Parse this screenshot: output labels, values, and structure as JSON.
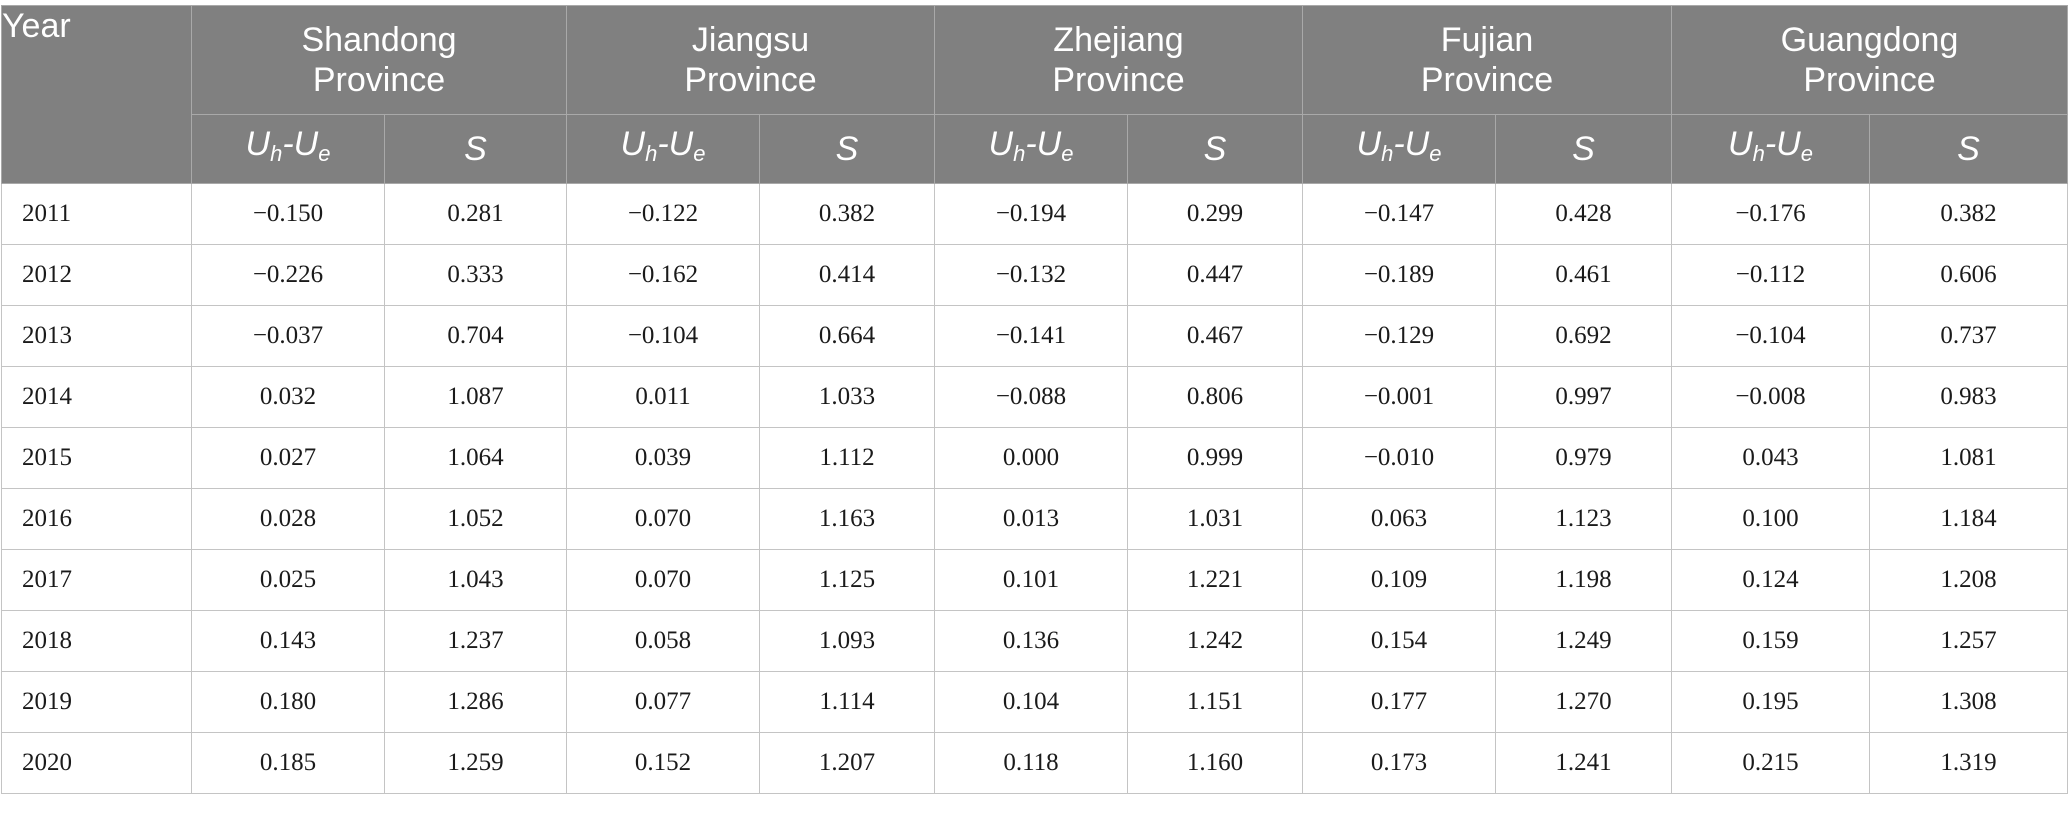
{
  "table": {
    "year_header": "Year",
    "provinces": [
      {
        "line1": "Shandong",
        "line2": "Province"
      },
      {
        "line1": "Jiangsu",
        "line2": "Province"
      },
      {
        "line1": "Zhejiang",
        "line2": "Province"
      },
      {
        "line1": "Fujian",
        "line2": "Province"
      },
      {
        "line1": "Guangdong",
        "line2": "Province"
      }
    ],
    "subheaders": {
      "diff_u1": "U",
      "diff_sub1": "h",
      "diff_mid": "-U",
      "diff_sub2": "e",
      "s": "S"
    },
    "rows": [
      {
        "year": "2011",
        "values": [
          "−0.150",
          "0.281",
          "−0.122",
          "0.382",
          "−0.194",
          "0.299",
          "−0.147",
          "0.428",
          "−0.176",
          "0.382"
        ]
      },
      {
        "year": "2012",
        "values": [
          "−0.226",
          "0.333",
          "−0.162",
          "0.414",
          "−0.132",
          "0.447",
          "−0.189",
          "0.461",
          "−0.112",
          "0.606"
        ]
      },
      {
        "year": "2013",
        "values": [
          "−0.037",
          "0.704",
          "−0.104",
          "0.664",
          "−0.141",
          "0.467",
          "−0.129",
          "0.692",
          "−0.104",
          "0.737"
        ]
      },
      {
        "year": "2014",
        "values": [
          "0.032",
          "1.087",
          "0.011",
          "1.033",
          "−0.088",
          "0.806",
          "−0.001",
          "0.997",
          "−0.008",
          "0.983"
        ]
      },
      {
        "year": "2015",
        "values": [
          "0.027",
          "1.064",
          "0.039",
          "1.112",
          "0.000",
          "0.999",
          "−0.010",
          "0.979",
          "0.043",
          "1.081"
        ]
      },
      {
        "year": "2016",
        "values": [
          "0.028",
          "1.052",
          "0.070",
          "1.163",
          "0.013",
          "1.031",
          "0.063",
          "1.123",
          "0.100",
          "1.184"
        ]
      },
      {
        "year": "2017",
        "values": [
          "0.025",
          "1.043",
          "0.070",
          "1.125",
          "0.101",
          "1.221",
          "0.109",
          "1.198",
          "0.124",
          "1.208"
        ]
      },
      {
        "year": "2018",
        "values": [
          "0.143",
          "1.237",
          "0.058",
          "1.093",
          "0.136",
          "1.242",
          "0.154",
          "1.249",
          "0.159",
          "1.257"
        ]
      },
      {
        "year": "2019",
        "values": [
          "0.180",
          "1.286",
          "0.077",
          "1.114",
          "0.104",
          "1.151",
          "0.177",
          "1.270",
          "0.195",
          "1.308"
        ]
      },
      {
        "year": "2020",
        "values": [
          "0.185",
          "1.259",
          "0.152",
          "1.207",
          "0.118",
          "1.160",
          "0.173",
          "1.241",
          "0.215",
          "1.319"
        ]
      }
    ]
  },
  "colors": {
    "header_bg": "#808080",
    "header_text": "#ffffff",
    "grid_line": "#c4c4c4"
  }
}
